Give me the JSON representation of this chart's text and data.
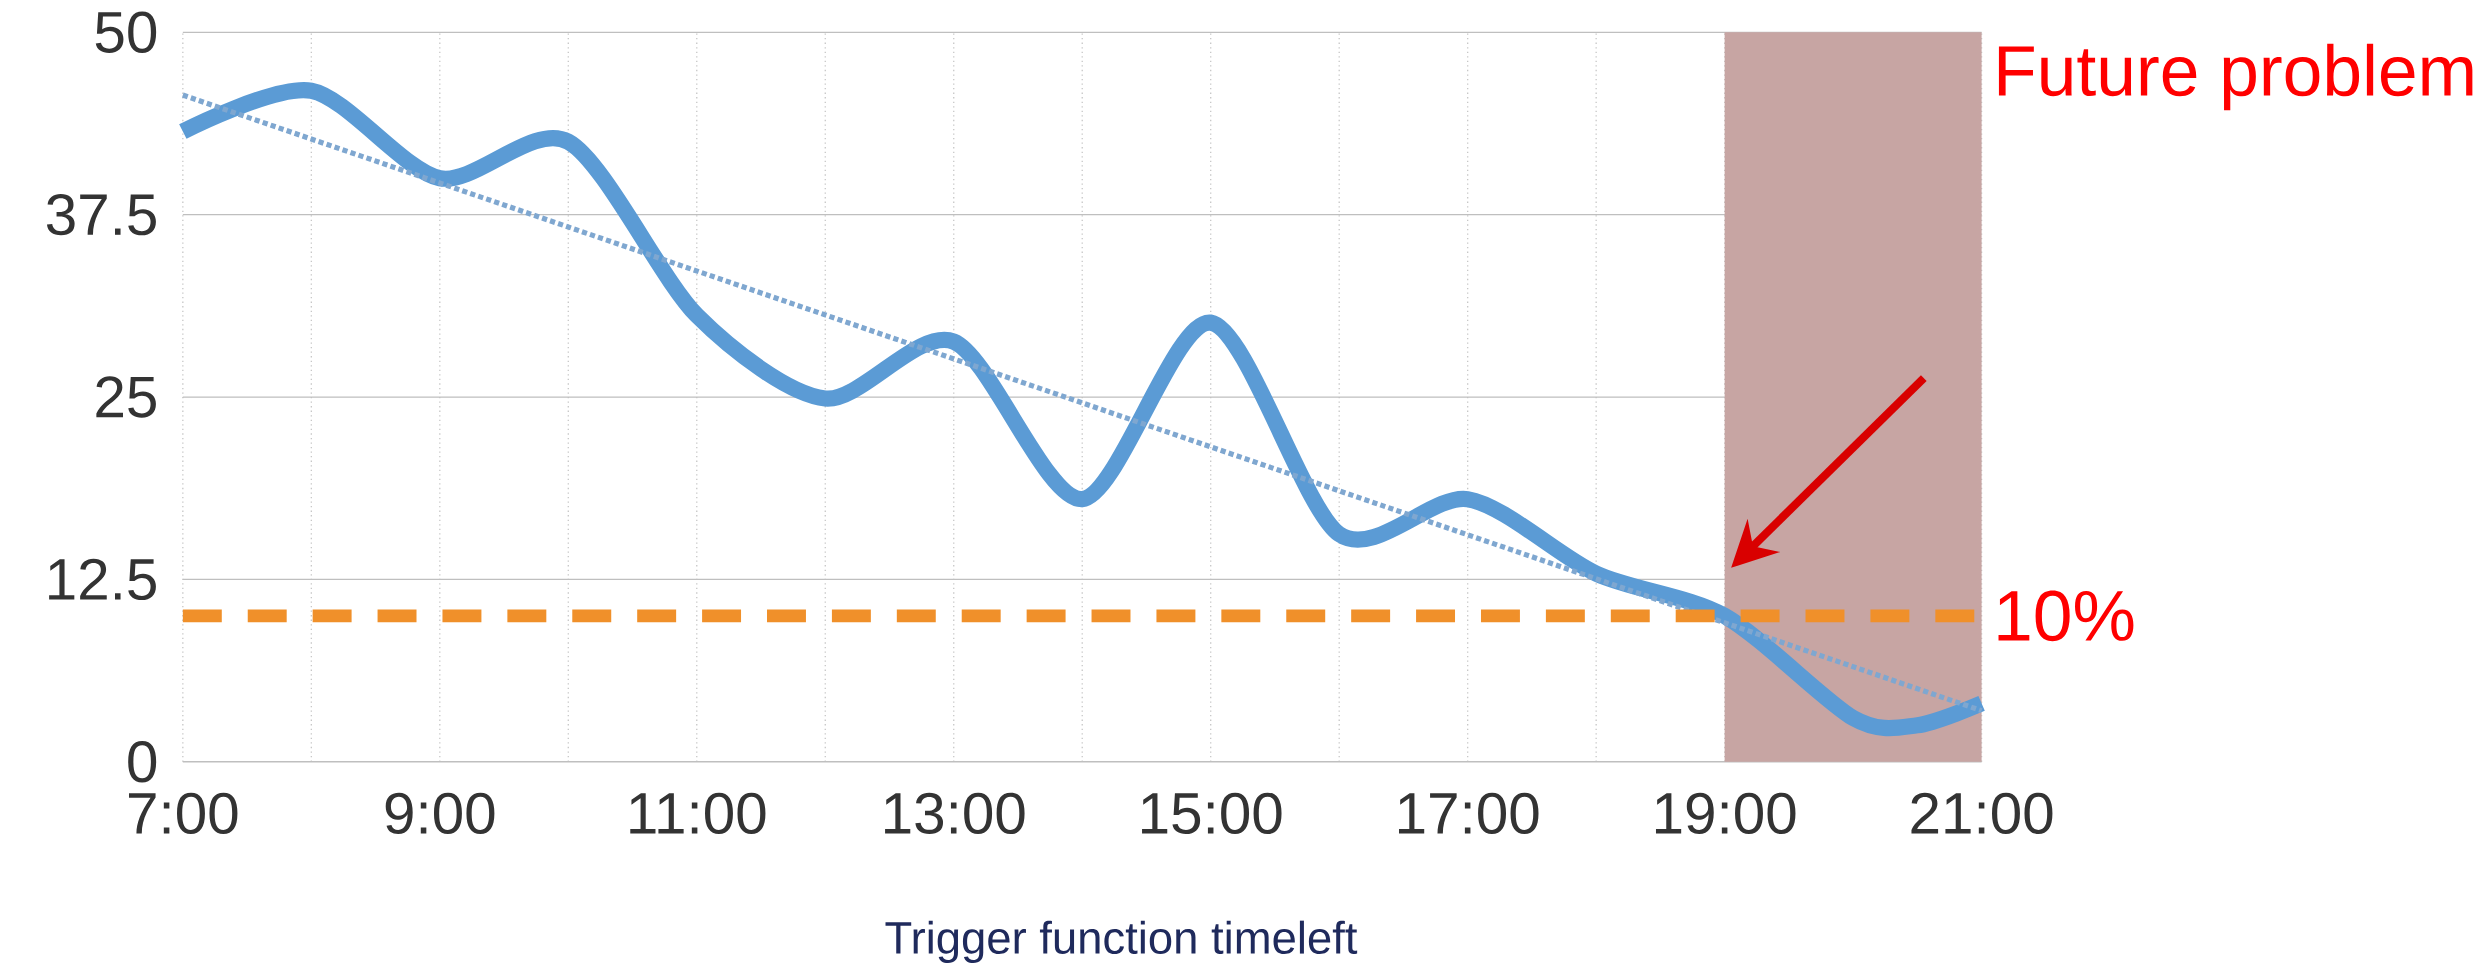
{
  "chart_data": {
    "type": "line",
    "xlim": [
      7,
      21
    ],
    "ylim": [
      0,
      50
    ],
    "xticks": [
      {
        "value": 7,
        "label": "7:00"
      },
      {
        "value": 8,
        "label": null
      },
      {
        "value": 9,
        "label": "9:00"
      },
      {
        "value": 10,
        "label": null
      },
      {
        "value": 11,
        "label": "11:00"
      },
      {
        "value": 12,
        "label": null
      },
      {
        "value": 13,
        "label": "13:00"
      },
      {
        "value": 14,
        "label": null
      },
      {
        "value": 15,
        "label": "15:00"
      },
      {
        "value": 16,
        "label": null
      },
      {
        "value": 17,
        "label": "17:00"
      },
      {
        "value": 18,
        "label": null
      },
      {
        "value": 19,
        "label": "19:00"
      },
      {
        "value": 20,
        "label": null
      },
      {
        "value": 21,
        "label": "21:00"
      }
    ],
    "yticks": [
      0,
      12.5,
      25,
      37.5,
      50
    ],
    "grid": true,
    "series": [
      {
        "color": "#5b9bd5",
        "line_style": "solid",
        "x": [
          7,
          8,
          9,
          10,
          11,
          12,
          13,
          14,
          15,
          16,
          17,
          18,
          19,
          20,
          20.5,
          21
        ],
        "values": [
          43.2,
          46,
          40,
          42.5,
          30.6,
          24.9,
          28.8,
          18,
          30.1,
          15.6,
          18,
          12.9,
          10,
          3,
          2.5,
          4
        ]
      },
      {
        "color": "#7fa7d0",
        "line_style": "dotted",
        "x": [
          7,
          21
        ],
        "values": [
          45.7,
          3.5
        ]
      }
    ],
    "ref_lines": [
      {
        "axis": "y",
        "value": 10,
        "label": "10%",
        "color": "#f0902a",
        "line_style": "dashed"
      }
    ],
    "bands": [
      {
        "axis": "x",
        "from": 19,
        "to": 21,
        "label": "Future problem",
        "color": "#c7a5a3"
      }
    ],
    "annotations": [
      "Trigger function timeleft"
    ]
  }
}
